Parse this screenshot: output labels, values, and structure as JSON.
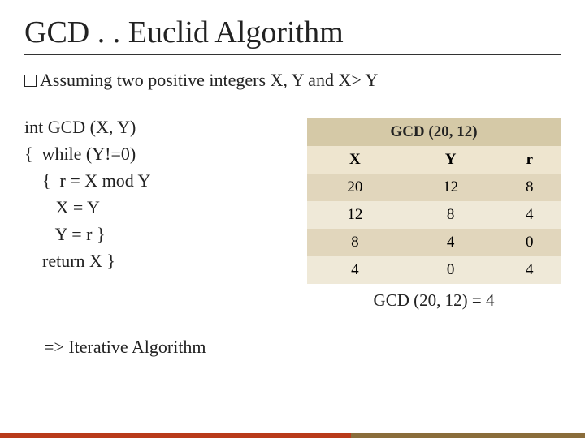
{
  "title": "GCD . . Euclid Algorithm",
  "bullet": "Assuming two positive integers X, Y and X> Y",
  "code": {
    "l1": "int GCD (X, Y)",
    "l2": "{  while (Y!=0)",
    "l3": "    {  r = X mod Y",
    "l4": "       X = Y",
    "l5": "       Y = r }",
    "l6": "    return X }"
  },
  "iterative": "=> Iterative Algorithm",
  "table": {
    "header": "GCD (20, 12)",
    "cols": {
      "c1": "X",
      "c2": "Y",
      "c3": "r"
    },
    "rows": [
      {
        "x": "20",
        "y": "12",
        "r": "8"
      },
      {
        "x": "12",
        "y": "8",
        "r": "4"
      },
      {
        "x": "8",
        "y": "4",
        "r": "0"
      },
      {
        "x": "4",
        "y": "0",
        "r": "4"
      }
    ],
    "result": "GCD (20, 12) = 4"
  },
  "colors": {
    "header_bg": "#d5c9a7",
    "colhead_bg": "#eee5cf",
    "row_odd_bg": "#e1d6bc",
    "row_even_bg": "#efe9d8",
    "underline": "#333333",
    "text": "#222222",
    "footer_left": "#b93b1a",
    "footer_right": "#8a6d3b"
  }
}
